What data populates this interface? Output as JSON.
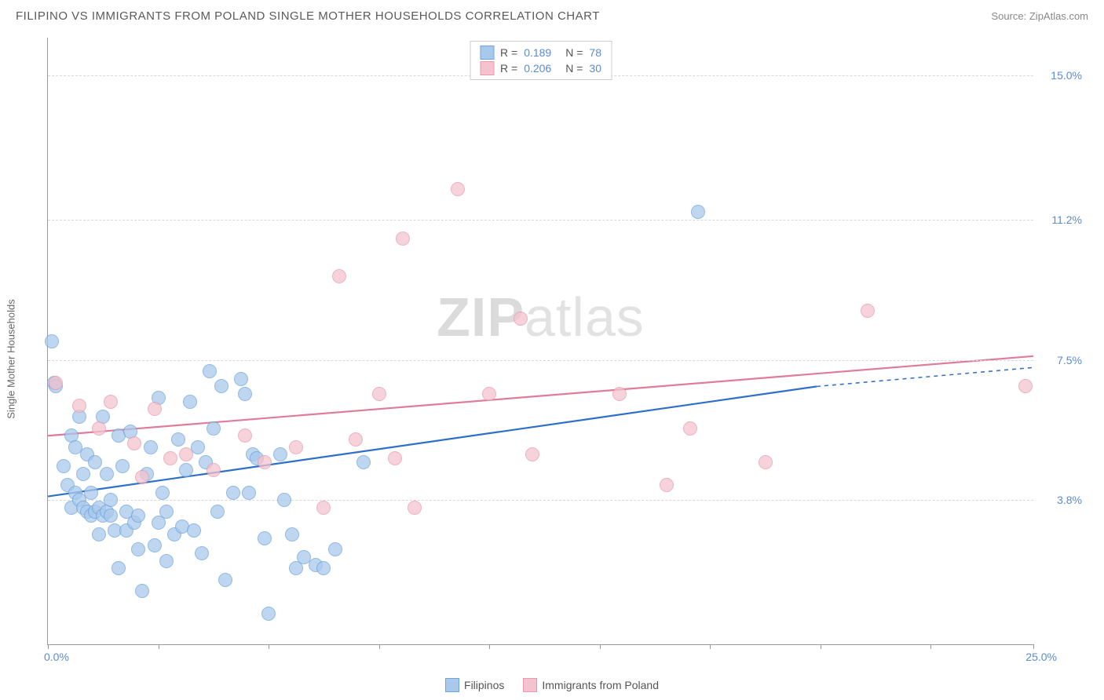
{
  "header": {
    "title": "FILIPINO VS IMMIGRANTS FROM POLAND SINGLE MOTHER HOUSEHOLDS CORRELATION CHART",
    "source": "Source: ZipAtlas.com"
  },
  "watermark": {
    "zip": "ZIP",
    "atlas": "atlas"
  },
  "chart": {
    "type": "scatter",
    "ylabel": "Single Mother Households",
    "xlim": [
      0,
      25
    ],
    "ylim": [
      0,
      16
    ],
    "x_ticks": [
      0,
      2.8,
      5.6,
      8.4,
      11.2,
      14.0,
      16.8,
      19.6,
      22.4,
      25.0
    ],
    "x_label_min": "0.0%",
    "x_label_max": "25.0%",
    "y_gridlines": [
      {
        "value": 3.8,
        "label": "3.8%"
      },
      {
        "value": 7.5,
        "label": "7.5%"
      },
      {
        "value": 11.2,
        "label": "11.2%"
      },
      {
        "value": 15.0,
        "label": "15.0%"
      }
    ],
    "series": [
      {
        "name": "Filipinos",
        "fill_color": "#a9c9ec",
        "stroke_color": "#6fa3da",
        "marker_opacity": 0.75,
        "marker_radius": 9,
        "R": "0.189",
        "N": "78",
        "trend": {
          "x1": 0,
          "y1": 3.9,
          "x2": 19.5,
          "y2": 6.8,
          "color": "#2e6fc9",
          "width": 2.2,
          "dash_x2": 25,
          "dash_y2": 7.3
        },
        "points": [
          [
            0.1,
            8.0
          ],
          [
            0.15,
            6.9
          ],
          [
            0.2,
            6.8
          ],
          [
            0.4,
            4.7
          ],
          [
            0.5,
            4.2
          ],
          [
            0.6,
            5.5
          ],
          [
            0.6,
            3.6
          ],
          [
            0.7,
            4.0
          ],
          [
            0.7,
            5.2
          ],
          [
            0.8,
            6.0
          ],
          [
            0.8,
            3.8
          ],
          [
            0.9,
            3.6
          ],
          [
            0.9,
            4.5
          ],
          [
            1.0,
            3.5
          ],
          [
            1.0,
            5.0
          ],
          [
            1.1,
            3.4
          ],
          [
            1.1,
            4.0
          ],
          [
            1.2,
            3.5
          ],
          [
            1.2,
            4.8
          ],
          [
            1.3,
            3.6
          ],
          [
            1.3,
            2.9
          ],
          [
            1.4,
            3.4
          ],
          [
            1.4,
            6.0
          ],
          [
            1.5,
            3.5
          ],
          [
            1.5,
            4.5
          ],
          [
            1.6,
            3.4
          ],
          [
            1.6,
            3.8
          ],
          [
            1.7,
            3.0
          ],
          [
            1.8,
            5.5
          ],
          [
            1.8,
            2.0
          ],
          [
            1.9,
            4.7
          ],
          [
            2.0,
            3.5
          ],
          [
            2.0,
            3.0
          ],
          [
            2.1,
            5.6
          ],
          [
            2.2,
            3.2
          ],
          [
            2.3,
            3.4
          ],
          [
            2.3,
            2.5
          ],
          [
            2.4,
            1.4
          ],
          [
            2.5,
            4.5
          ],
          [
            2.6,
            5.2
          ],
          [
            2.7,
            2.6
          ],
          [
            2.8,
            3.2
          ],
          [
            2.8,
            6.5
          ],
          [
            2.9,
            4.0
          ],
          [
            3.0,
            3.5
          ],
          [
            3.0,
            2.2
          ],
          [
            3.2,
            2.9
          ],
          [
            3.3,
            5.4
          ],
          [
            3.4,
            3.1
          ],
          [
            3.5,
            4.6
          ],
          [
            3.6,
            6.4
          ],
          [
            3.7,
            3.0
          ],
          [
            3.8,
            5.2
          ],
          [
            3.9,
            2.4
          ],
          [
            4.0,
            4.8
          ],
          [
            4.1,
            7.2
          ],
          [
            4.2,
            5.7
          ],
          [
            4.3,
            3.5
          ],
          [
            4.4,
            6.8
          ],
          [
            4.5,
            1.7
          ],
          [
            4.7,
            4.0
          ],
          [
            4.9,
            7.0
          ],
          [
            5.0,
            6.6
          ],
          [
            5.1,
            4.0
          ],
          [
            5.2,
            5.0
          ],
          [
            5.3,
            4.9
          ],
          [
            5.5,
            2.8
          ],
          [
            5.6,
            0.8
          ],
          [
            5.9,
            5.0
          ],
          [
            6.0,
            3.8
          ],
          [
            6.2,
            2.9
          ],
          [
            6.3,
            2.0
          ],
          [
            6.5,
            2.3
          ],
          [
            6.8,
            2.1
          ],
          [
            7.0,
            2.0
          ],
          [
            7.3,
            2.5
          ],
          [
            8.0,
            4.8
          ],
          [
            16.5,
            11.4
          ]
        ]
      },
      {
        "name": "Immigrants from Poland",
        "fill_color": "#f4c3ce",
        "stroke_color": "#e79aad",
        "marker_opacity": 0.75,
        "marker_radius": 9,
        "R": "0.206",
        "N": "30",
        "trend": {
          "x1": 0,
          "y1": 5.5,
          "x2": 25,
          "y2": 7.6,
          "color": "#e07b99",
          "width": 2.2
        },
        "points": [
          [
            0.2,
            6.9
          ],
          [
            0.8,
            6.3
          ],
          [
            1.3,
            5.7
          ],
          [
            1.6,
            6.4
          ],
          [
            2.2,
            5.3
          ],
          [
            2.4,
            4.4
          ],
          [
            2.7,
            6.2
          ],
          [
            3.1,
            4.9
          ],
          [
            3.5,
            5.0
          ],
          [
            4.2,
            4.6
          ],
          [
            5.0,
            5.5
          ],
          [
            5.5,
            4.8
          ],
          [
            6.3,
            5.2
          ],
          [
            7.0,
            3.6
          ],
          [
            7.4,
            9.7
          ],
          [
            7.8,
            5.4
          ],
          [
            8.4,
            6.6
          ],
          [
            8.8,
            4.9
          ],
          [
            9.0,
            10.7
          ],
          [
            9.3,
            3.6
          ],
          [
            10.4,
            12.0
          ],
          [
            11.2,
            6.6
          ],
          [
            12.0,
            8.6
          ],
          [
            12.3,
            5.0
          ],
          [
            14.5,
            6.6
          ],
          [
            15.7,
            4.2
          ],
          [
            16.3,
            5.7
          ],
          [
            18.2,
            4.8
          ],
          [
            20.8,
            8.8
          ],
          [
            24.8,
            6.8
          ]
        ]
      }
    ]
  },
  "legend_box": {
    "r_label": "R =",
    "n_label": "N ="
  },
  "bottom_legend": {
    "items": [
      "Filipinos",
      "Immigrants from Poland"
    ]
  }
}
